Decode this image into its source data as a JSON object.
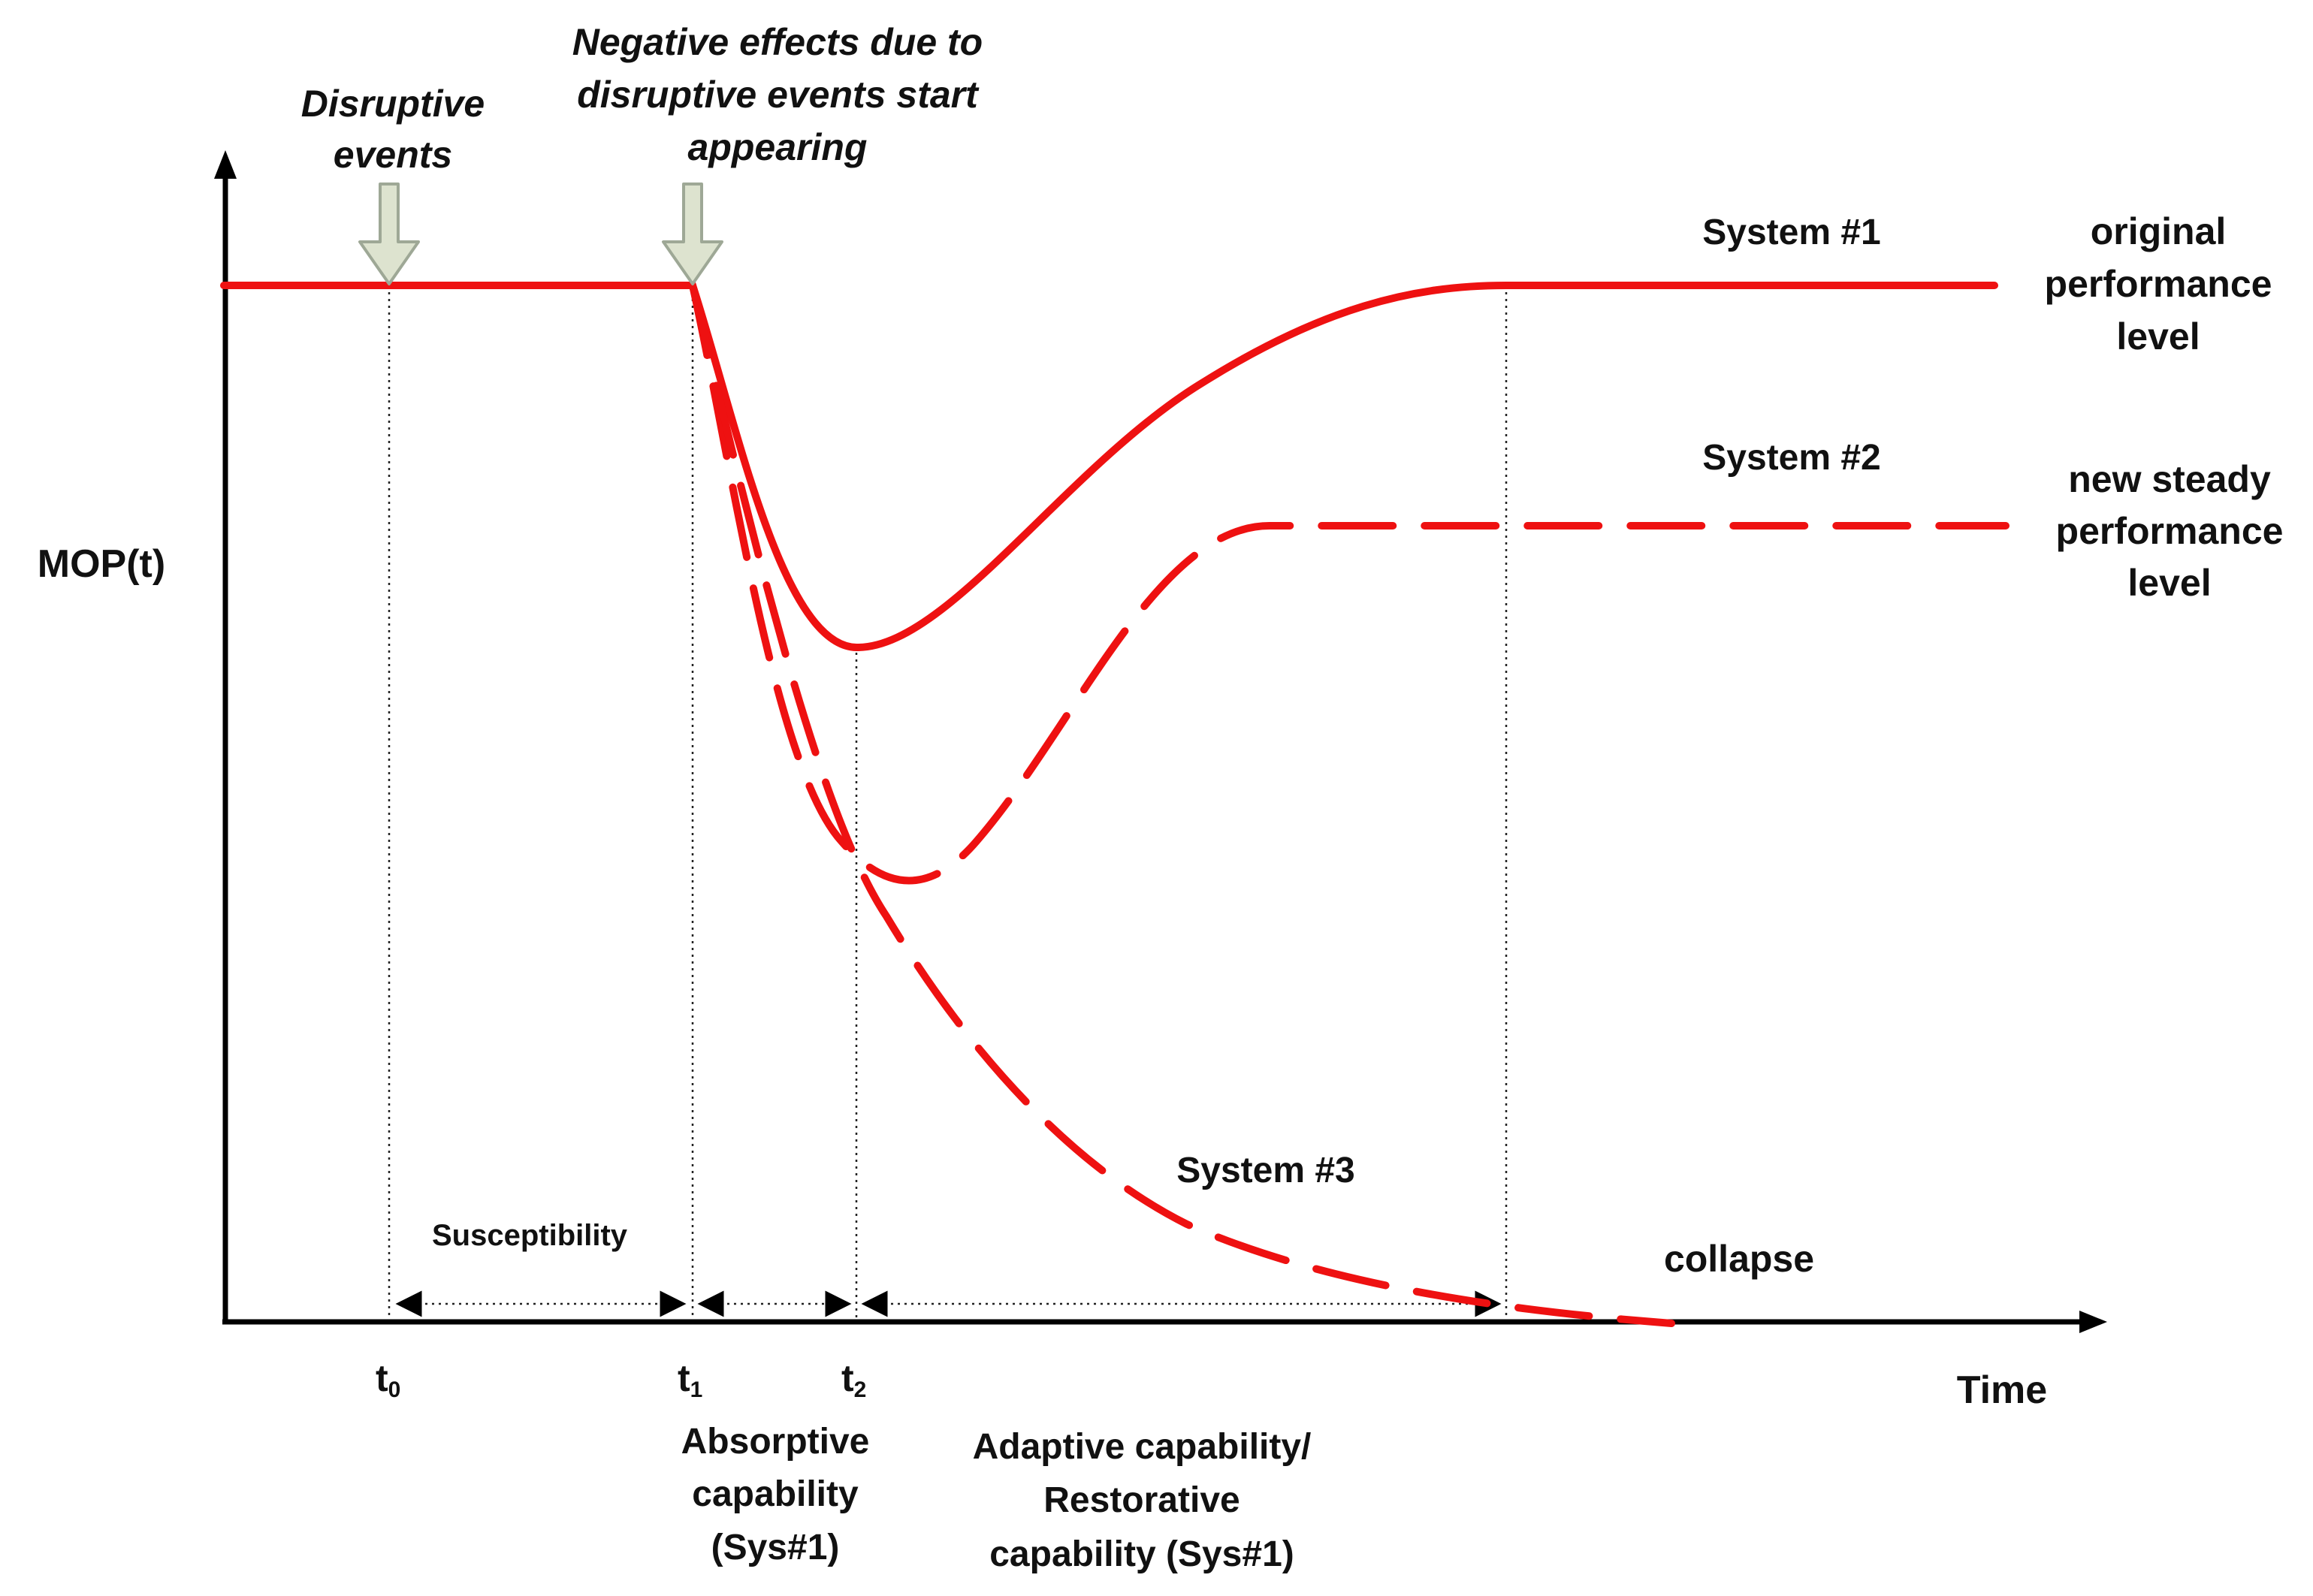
{
  "diagram": {
    "y_axis_label": "MOP(t)",
    "x_axis_label": "Time",
    "annotations": {
      "disruptive_events": [
        "Disruptive",
        "events"
      ],
      "negative_effects": [
        "Negative effects due to",
        "disruptive events start",
        "appearing"
      ]
    },
    "time_markers": {
      "t0": {
        "main": "t",
        "sub": "0"
      },
      "t1": {
        "main": "t",
        "sub": "1"
      },
      "t2": {
        "main": "t",
        "sub": "2"
      }
    },
    "intervals": {
      "susceptibility": "Susceptibility",
      "absorptive": [
        "Absorptive",
        "capability",
        "(Sys#1)"
      ],
      "adaptive": [
        "Adaptive capability/",
        "Restorative",
        "capability (Sys#1)"
      ]
    },
    "systems": {
      "system1": "System #1",
      "system2": "System #2",
      "system3": "System #3"
    },
    "levels": {
      "original": [
        "original",
        "performance",
        "level"
      ],
      "new_steady": [
        "new steady",
        "performance",
        "level"
      ],
      "collapse": "collapse"
    },
    "colors": {
      "curve": "#ee1111",
      "axis": "#000000",
      "arrow_fill": "#dde3cf",
      "arrow_stroke": "#9ea896"
    }
  }
}
